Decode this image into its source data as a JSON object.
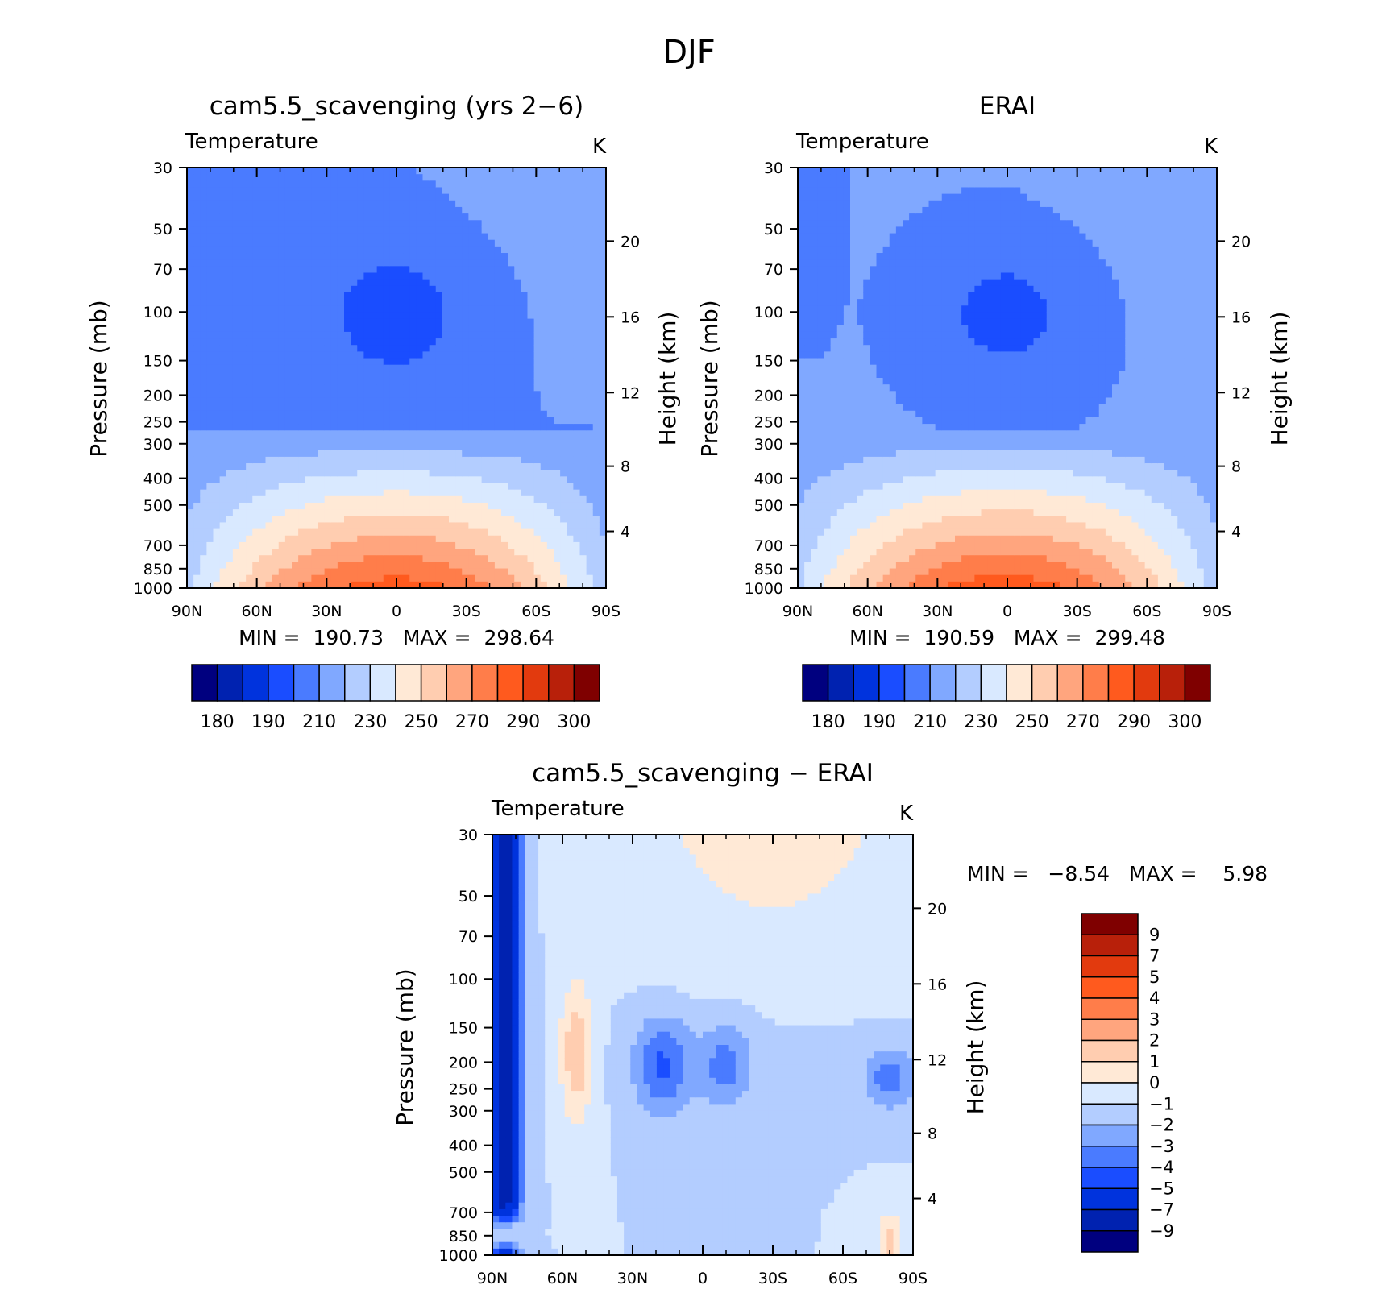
{
  "figure": {
    "title": "DJF",
    "colors": {
      "abs_levels": [
        "#00007f",
        "#0022b0",
        "#0033dd",
        "#1a4dff",
        "#4a7bff",
        "#80a8ff",
        "#b3cdff",
        "#d9e9ff",
        "#ffe9d6",
        "#ffcdb0",
        "#ffa57e",
        "#ff7d4a",
        "#ff5a1e",
        "#e23a0e",
        "#b8200a",
        "#7f0000"
      ],
      "diff_levels": [
        "#00007f",
        "#0022b0",
        "#0033dd",
        "#1a4dff",
        "#4a7bff",
        "#80a8ff",
        "#b3cdff",
        "#d9e9ff",
        "#ffe9d6",
        "#ffcdb0",
        "#ffa57e",
        "#ff7d4a",
        "#ff5a1e",
        "#e23a0e",
        "#b8200a",
        "#7f0000"
      ]
    }
  },
  "chart_data": [
    {
      "type": "heatmap",
      "title": "cam5.5_scavenging (yrs 2−6)",
      "subtitle_left": "Temperature",
      "subtitle_right": "K",
      "ylabel": "Pressure (mb)",
      "y2label": "Height (km)",
      "x_ticks": [
        "90N",
        "60N",
        "30N",
        "0",
        "30S",
        "60S",
        "90S"
      ],
      "y_ticks": [
        "30",
        "50",
        "70",
        "100",
        "150",
        "200",
        "250",
        "300",
        "400",
        "500",
        "700",
        "850",
        "1000"
      ],
      "y2_ticks": [
        "20",
        "16",
        "12",
        "8",
        "4"
      ],
      "ylim": [
        1000,
        30
      ],
      "y_scale": "log",
      "xlim": [
        "90N",
        "90S"
      ],
      "stats": {
        "min_label": "MIN =",
        "min": "190.73",
        "max_label": "MAX =",
        "max": "298.64"
      },
      "colorbar": {
        "orientation": "horizontal",
        "labels": [
          "180",
          "190",
          "210",
          "230",
          "250",
          "270",
          "290",
          "300"
        ]
      },
      "field": "model"
    },
    {
      "type": "heatmap",
      "title": "ERAI",
      "subtitle_left": "Temperature",
      "subtitle_right": "K",
      "ylabel": "Pressure (mb)",
      "y2label": "Height (km)",
      "x_ticks": [
        "90N",
        "60N",
        "30N",
        "0",
        "30S",
        "60S",
        "90S"
      ],
      "y_ticks": [
        "30",
        "50",
        "70",
        "100",
        "150",
        "200",
        "250",
        "300",
        "400",
        "500",
        "700",
        "850",
        "1000"
      ],
      "y2_ticks": [
        "20",
        "16",
        "12",
        "8",
        "4"
      ],
      "ylim": [
        1000,
        30
      ],
      "y_scale": "log",
      "xlim": [
        "90N",
        "90S"
      ],
      "stats": {
        "min_label": "MIN =",
        "min": "190.59",
        "max_label": "MAX =",
        "max": "299.48"
      },
      "colorbar": {
        "orientation": "horizontal",
        "labels": [
          "180",
          "190",
          "210",
          "230",
          "250",
          "270",
          "290",
          "300"
        ]
      },
      "field": "obs"
    },
    {
      "type": "heatmap",
      "title": "cam5.5_scavenging − ERAI",
      "subtitle_left": "Temperature",
      "subtitle_right": "K",
      "ylabel": "Pressure (mb)",
      "y2label": "Height (km)",
      "x_ticks": [
        "90N",
        "60N",
        "30N",
        "0",
        "30S",
        "60S",
        "90S"
      ],
      "y_ticks": [
        "30",
        "50",
        "70",
        "100",
        "150",
        "200",
        "250",
        "300",
        "400",
        "500",
        "700",
        "850",
        "1000"
      ],
      "y2_ticks": [
        "20",
        "16",
        "12",
        "8",
        "4"
      ],
      "ylim": [
        1000,
        30
      ],
      "y_scale": "log",
      "xlim": [
        "90N",
        "90S"
      ],
      "stats": {
        "min_label": "MIN =",
        "min": "−8.54",
        "max_label": "MAX =",
        "max": "5.98"
      },
      "colorbar": {
        "orientation": "vertical",
        "labels": [
          "9",
          "7",
          "5",
          "4",
          "3",
          "2",
          "1",
          "0",
          "−1",
          "−2",
          "−3",
          "−4",
          "−5",
          "−7",
          "−9"
        ]
      },
      "field": "diff"
    }
  ]
}
